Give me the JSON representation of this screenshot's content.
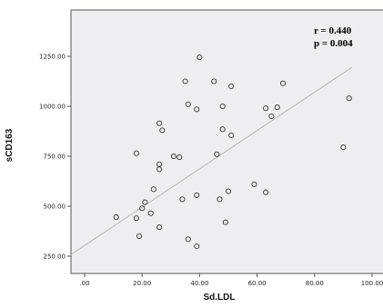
{
  "chart_data": {
    "type": "scatter",
    "title": "",
    "xlabel": "Sd.LDL",
    "ylabel": "sCD163",
    "xlim": [
      -5,
      105
    ],
    "ylim": [
      160,
      1340
    ],
    "x_ticks": [
      0,
      20,
      40,
      60,
      80,
      100
    ],
    "x_tick_labels": [
      ".00",
      "20.00",
      "40.00",
      "60.00",
      "80.00",
      "100.00"
    ],
    "y_ticks": [
      250,
      500,
      750,
      1000,
      1250
    ],
    "y_tick_labels": [
      "250.00",
      "500.00",
      "750.00",
      "1000.00",
      "1250.00"
    ],
    "annotations": [
      "r =  0.440",
      "p = 0.004"
    ],
    "grid": false,
    "fit_line": {
      "x": [
        -5,
        93
      ],
      "y": [
        256,
        1195
      ]
    },
    "points": [
      {
        "x": 11,
        "y": 445
      },
      {
        "x": 18,
        "y": 440
      },
      {
        "x": 19,
        "y": 350
      },
      {
        "x": 20,
        "y": 490
      },
      {
        "x": 21,
        "y": 520
      },
      {
        "x": 23,
        "y": 465
      },
      {
        "x": 24,
        "y": 585
      },
      {
        "x": 26,
        "y": 395
      },
      {
        "x": 18,
        "y": 765
      },
      {
        "x": 26,
        "y": 685
      },
      {
        "x": 26,
        "y": 710
      },
      {
        "x": 26,
        "y": 915
      },
      {
        "x": 27,
        "y": 880
      },
      {
        "x": 31,
        "y": 750
      },
      {
        "x": 33,
        "y": 745
      },
      {
        "x": 34,
        "y": 535
      },
      {
        "x": 35,
        "y": 1125
      },
      {
        "x": 36,
        "y": 1010
      },
      {
        "x": 36,
        "y": 335
      },
      {
        "x": 39,
        "y": 985
      },
      {
        "x": 39,
        "y": 555
      },
      {
        "x": 39,
        "y": 300
      },
      {
        "x": 40,
        "y": 1245
      },
      {
        "x": 45,
        "y": 1125
      },
      {
        "x": 46,
        "y": 760
      },
      {
        "x": 47,
        "y": 535
      },
      {
        "x": 48,
        "y": 885
      },
      {
        "x": 48,
        "y": 1000
      },
      {
        "x": 49,
        "y": 420
      },
      {
        "x": 50,
        "y": 575
      },
      {
        "x": 51,
        "y": 855
      },
      {
        "x": 51,
        "y": 1100
      },
      {
        "x": 59,
        "y": 610
      },
      {
        "x": 63,
        "y": 990
      },
      {
        "x": 63,
        "y": 570
      },
      {
        "x": 65,
        "y": 950
      },
      {
        "x": 67,
        "y": 995
      },
      {
        "x": 69,
        "y": 1115
      },
      {
        "x": 90,
        "y": 795
      },
      {
        "x": 92,
        "y": 1040
      }
    ]
  }
}
